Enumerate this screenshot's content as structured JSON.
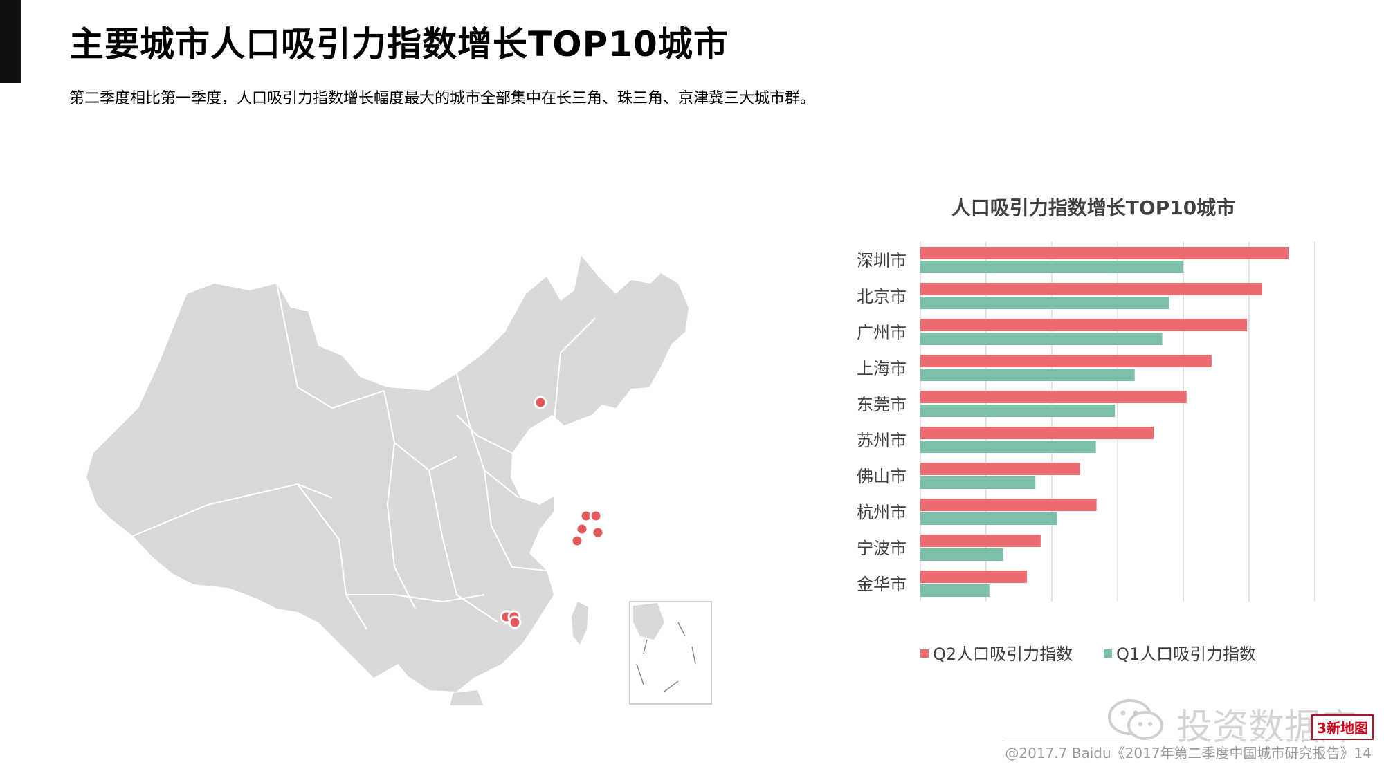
{
  "header": {
    "title": "主要城市人口吸引力指数增长TOP10城市",
    "subtitle": "第二季度相比第一季度，人口吸引力指数增长幅度最大的城市全部集中在长三角、珠三角、京津冀三大城市群。"
  },
  "map": {
    "land_color": "#d9d9d9",
    "marker_color": "#e05a5a"
  },
  "chart_data": {
    "type": "bar",
    "orientation": "horizontal",
    "title": "人口吸引力指数增长TOP10城市",
    "categories": [
      "深圳市",
      "北京市",
      "广州市",
      "上海市",
      "东莞市",
      "苏州市",
      "佛山市",
      "杭州市",
      "宁波市",
      "金华市"
    ],
    "series": [
      {
        "name": "Q2人口吸引力指数",
        "color": "#ec6b70",
        "values": [
          5.6,
          5.2,
          4.97,
          4.43,
          4.05,
          3.55,
          2.43,
          2.68,
          1.83,
          1.62
        ]
      },
      {
        "name": "Q1人口吸引力指数",
        "color": "#7dbfa8",
        "values": [
          4.0,
          3.78,
          3.68,
          3.26,
          2.96,
          2.67,
          1.75,
          2.08,
          1.26,
          1.05
        ]
      }
    ],
    "xlim": [
      0,
      6
    ],
    "grid": true,
    "legend": "bottom"
  },
  "watermark": {
    "text": "投资数据库",
    "badge": "3新地图"
  },
  "footer": {
    "text": "@2017.7 Baidu《2017年第二季度中国城市研究报告》14"
  }
}
